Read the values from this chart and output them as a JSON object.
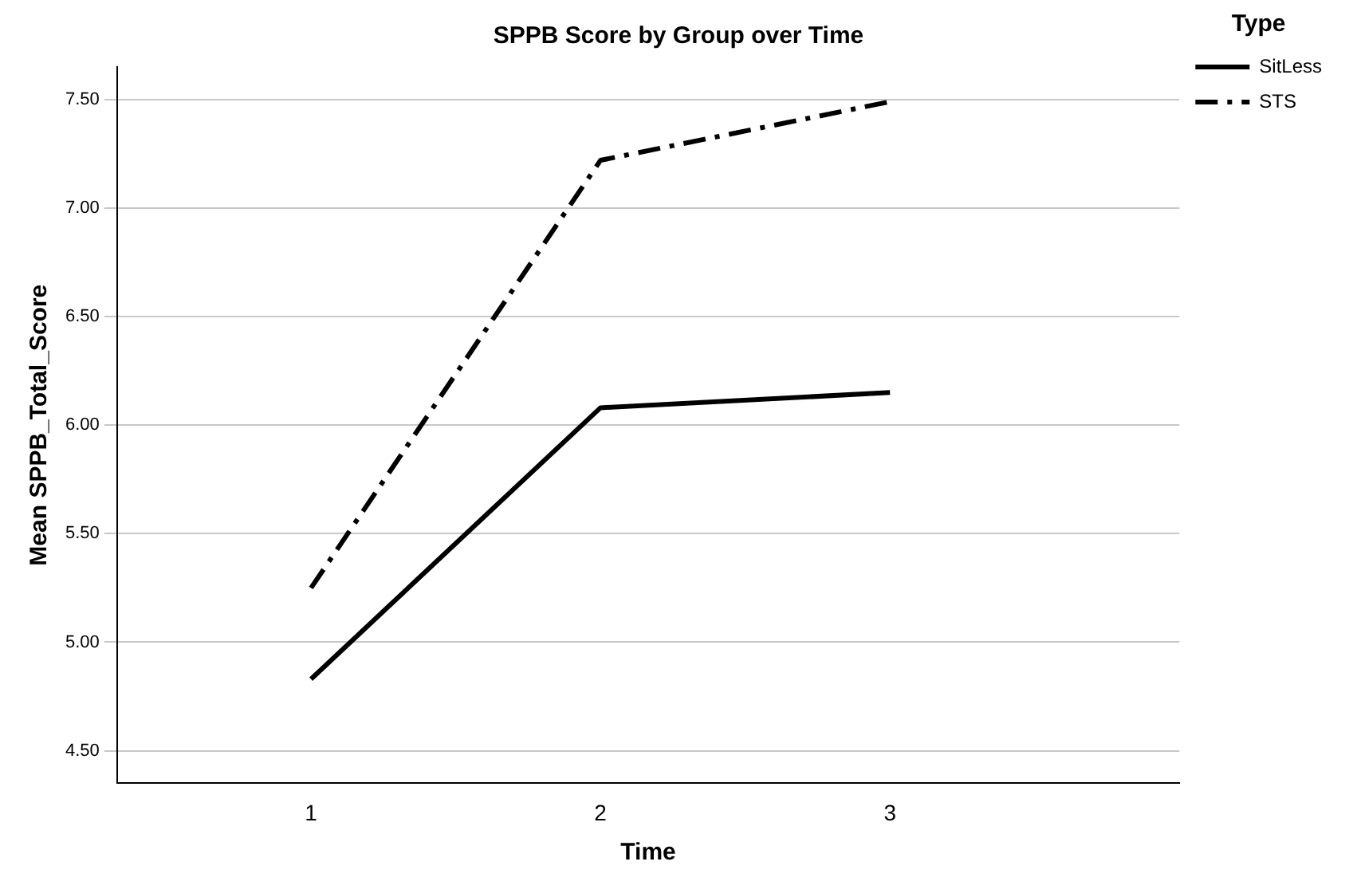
{
  "chart_data": {
    "type": "line",
    "title": "SPPB Score by Group over Time",
    "xlabel": "Time",
    "ylabel": "Mean SPPB_Total_Score",
    "legend_title": "Type",
    "x": [
      1,
      2,
      3
    ],
    "series": [
      {
        "name": "SitLess",
        "color": "#000000",
        "values": [
          4.83,
          6.08,
          6.15
        ],
        "line_style": "solid"
      },
      {
        "name": "STS",
        "color": "#000000",
        "values": [
          5.25,
          7.22,
          7.49
        ],
        "line_style": "dashed"
      }
    ],
    "xlim": [
      0.33,
      4.0
    ],
    "xticks": [
      1,
      2,
      3
    ],
    "ylim": [
      4.35,
      7.65
    ],
    "yticks": [
      {
        "value": 4.5,
        "label": "4.50"
      },
      {
        "value": 5,
        "label": "5.00"
      },
      {
        "value": 5.5,
        "label": "5.50"
      },
      {
        "value": 6,
        "label": "6.00"
      },
      {
        "value": 6.5,
        "label": "6.50"
      },
      {
        "value": 7,
        "label": "7.00"
      },
      {
        "value": 7.5,
        "label": "7.50"
      }
    ],
    "grid": "y",
    "legend": "top right",
    "marker": "none"
  }
}
